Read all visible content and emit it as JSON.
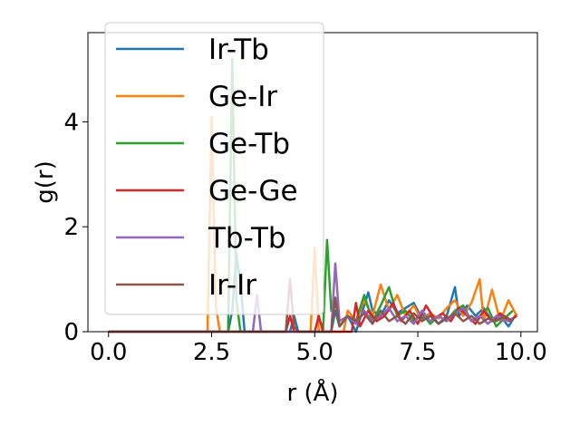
{
  "chart_data": {
    "type": "line",
    "title": "",
    "xlabel": "r (Å)",
    "ylabel": "g(r)",
    "xlim": [
      -0.5,
      10.4
    ],
    "ylim": [
      0,
      5.7
    ],
    "xticks": [
      0.0,
      2.5,
      5.0,
      7.5,
      10.0
    ],
    "xtick_labels": [
      "0.0",
      "2.5",
      "5.0",
      "7.5",
      "10.0"
    ],
    "yticks": [
      0,
      2,
      4
    ],
    "ytick_labels": [
      "0",
      "2",
      "4"
    ],
    "grid": false,
    "legend_position": "top-left",
    "series": [
      {
        "name": "Ir-Tb",
        "color": "#1f77b4",
        "points": [
          [
            0,
            0
          ],
          [
            2.9,
            0
          ],
          [
            3.0,
            0.4
          ],
          [
            3.1,
            1.5
          ],
          [
            3.2,
            0.9
          ],
          [
            3.3,
            0
          ],
          [
            4.4,
            0
          ],
          [
            4.5,
            0.3
          ],
          [
            4.6,
            0
          ],
          [
            5.4,
            0
          ],
          [
            5.5,
            0.4
          ],
          [
            5.6,
            0.1
          ],
          [
            5.8,
            0.3
          ],
          [
            6.0,
            0
          ],
          [
            6.2,
            0.5
          ],
          [
            6.3,
            0.75
          ],
          [
            6.4,
            0.4
          ],
          [
            6.6,
            0.3
          ],
          [
            6.8,
            0.6
          ],
          [
            7.0,
            0.35
          ],
          [
            7.2,
            0.45
          ],
          [
            7.4,
            0.55
          ],
          [
            7.6,
            0.25
          ],
          [
            7.8,
            0.35
          ],
          [
            8.0,
            0.15
          ],
          [
            8.2,
            0.3
          ],
          [
            8.4,
            0.85
          ],
          [
            8.5,
            0.3
          ],
          [
            8.7,
            0.5
          ],
          [
            8.9,
            0.3
          ],
          [
            9.1,
            0.45
          ],
          [
            9.3,
            0.2
          ],
          [
            9.5,
            0.3
          ],
          [
            9.7,
            0.1
          ],
          [
            9.9,
            0.35
          ]
        ]
      },
      {
        "name": "Ge-Ir",
        "color": "#ff7f0e",
        "points": [
          [
            0,
            0
          ],
          [
            2.4,
            0
          ],
          [
            2.5,
            4.1
          ],
          [
            2.6,
            0.5
          ],
          [
            2.7,
            0
          ],
          [
            4.9,
            0
          ],
          [
            5.0,
            1.6
          ],
          [
            5.1,
            0
          ],
          [
            5.7,
            0
          ],
          [
            5.8,
            0.4
          ],
          [
            6.0,
            0.2
          ],
          [
            6.2,
            0.6
          ],
          [
            6.4,
            0.3
          ],
          [
            6.6,
            0.9
          ],
          [
            6.8,
            0.4
          ],
          [
            7.0,
            0.7
          ],
          [
            7.2,
            0.3
          ],
          [
            7.4,
            0.5
          ],
          [
            7.6,
            0.2
          ],
          [
            7.8,
            0.35
          ],
          [
            8.0,
            0.25
          ],
          [
            8.2,
            0.45
          ],
          [
            8.4,
            0.6
          ],
          [
            8.6,
            0.3
          ],
          [
            8.8,
            0.55
          ],
          [
            9.0,
            1.0
          ],
          [
            9.1,
            0.2
          ],
          [
            9.3,
            0.8
          ],
          [
            9.5,
            0.2
          ],
          [
            9.7,
            0.6
          ],
          [
            9.9,
            0.3
          ]
        ]
      },
      {
        "name": "Ge-Tb",
        "color": "#2ca02c",
        "points": [
          [
            0,
            0
          ],
          [
            2.9,
            0
          ],
          [
            3.0,
            5.2
          ],
          [
            3.1,
            0.6
          ],
          [
            3.2,
            0
          ],
          [
            5.2,
            0
          ],
          [
            5.3,
            1.75
          ],
          [
            5.4,
            0.4
          ],
          [
            5.5,
            0.6
          ],
          [
            5.6,
            0.1
          ],
          [
            5.8,
            0.3
          ],
          [
            6.0,
            0.2
          ],
          [
            6.2,
            0.7
          ],
          [
            6.4,
            0.2
          ],
          [
            6.6,
            0.5
          ],
          [
            6.8,
            0.85
          ],
          [
            7.0,
            0.3
          ],
          [
            7.2,
            0.4
          ],
          [
            7.4,
            0.2
          ],
          [
            7.6,
            0.35
          ],
          [
            7.8,
            0.15
          ],
          [
            8.0,
            0.3
          ],
          [
            8.2,
            0.2
          ],
          [
            8.4,
            0.4
          ],
          [
            8.6,
            0.5
          ],
          [
            8.8,
            0.2
          ],
          [
            9.0,
            0.3
          ],
          [
            9.2,
            0.45
          ],
          [
            9.4,
            0.1
          ],
          [
            9.6,
            0.25
          ],
          [
            9.8,
            0.4
          ]
        ]
      },
      {
        "name": "Ge-Ge",
        "color": "#d62728",
        "points": [
          [
            0,
            0
          ],
          [
            4.3,
            0
          ],
          [
            4.4,
            0.3
          ],
          [
            4.5,
            0
          ],
          [
            5.0,
            0
          ],
          [
            5.1,
            0.3
          ],
          [
            5.2,
            0
          ],
          [
            5.9,
            0
          ],
          [
            6.0,
            0.55
          ],
          [
            6.1,
            0.1
          ],
          [
            6.3,
            0.4
          ],
          [
            6.5,
            0.2
          ],
          [
            6.7,
            0.3
          ],
          [
            6.9,
            0.55
          ],
          [
            7.1,
            0.2
          ],
          [
            7.3,
            0.4
          ],
          [
            7.5,
            0.15
          ],
          [
            7.7,
            0.5
          ],
          [
            7.9,
            0.25
          ],
          [
            8.1,
            0.35
          ],
          [
            8.3,
            0.2
          ],
          [
            8.5,
            0.45
          ],
          [
            8.7,
            0.3
          ],
          [
            8.9,
            0.15
          ],
          [
            9.1,
            0.4
          ],
          [
            9.3,
            0.2
          ],
          [
            9.5,
            0.35
          ],
          [
            9.7,
            0.2
          ],
          [
            9.9,
            0.3
          ]
        ]
      },
      {
        "name": "Tb-Tb",
        "color": "#9467bd",
        "points": [
          [
            0,
            0
          ],
          [
            3.5,
            0
          ],
          [
            3.6,
            0.7
          ],
          [
            3.7,
            0
          ],
          [
            5.4,
            0
          ],
          [
            5.5,
            1.3
          ],
          [
            5.6,
            0.2
          ],
          [
            5.8,
            0.3
          ],
          [
            6.0,
            0.15
          ],
          [
            6.2,
            0.4
          ],
          [
            6.4,
            0.2
          ],
          [
            6.6,
            0.3
          ],
          [
            6.8,
            0.45
          ],
          [
            7.0,
            0.2
          ],
          [
            7.2,
            0.3
          ],
          [
            7.4,
            0.15
          ],
          [
            7.6,
            0.4
          ],
          [
            7.8,
            0.2
          ],
          [
            8.0,
            0.3
          ],
          [
            8.2,
            0.2
          ],
          [
            8.4,
            0.35
          ],
          [
            8.6,
            0.45
          ],
          [
            8.8,
            0.2
          ],
          [
            9.0,
            0.3
          ],
          [
            9.2,
            0.15
          ],
          [
            9.4,
            0.3
          ],
          [
            9.6,
            0.2
          ],
          [
            9.8,
            0.25
          ]
        ]
      },
      {
        "name": "Ir-Ir",
        "color": "#8c564b",
        "points": [
          [
            0,
            0
          ],
          [
            4.3,
            0
          ],
          [
            4.4,
            1.0
          ],
          [
            4.5,
            0.1
          ],
          [
            4.6,
            0
          ],
          [
            5.4,
            0
          ],
          [
            5.5,
            0.65
          ],
          [
            5.6,
            0.1
          ],
          [
            5.8,
            0.3
          ],
          [
            6.0,
            0.2
          ],
          [
            6.2,
            0.35
          ],
          [
            6.4,
            0.15
          ],
          [
            6.6,
            0.4
          ],
          [
            6.8,
            0.2
          ],
          [
            7.0,
            0.3
          ],
          [
            7.2,
            0.15
          ],
          [
            7.4,
            0.35
          ],
          [
            7.6,
            0.2
          ],
          [
            7.8,
            0.3
          ],
          [
            8.0,
            0.15
          ],
          [
            8.2,
            0.25
          ],
          [
            8.4,
            0.35
          ],
          [
            8.6,
            0.2
          ],
          [
            8.8,
            0.3
          ],
          [
            9.0,
            0.15
          ],
          [
            9.2,
            0.25
          ],
          [
            9.4,
            0.2
          ],
          [
            9.6,
            0.3
          ],
          [
            9.8,
            0.2
          ]
        ]
      }
    ]
  }
}
